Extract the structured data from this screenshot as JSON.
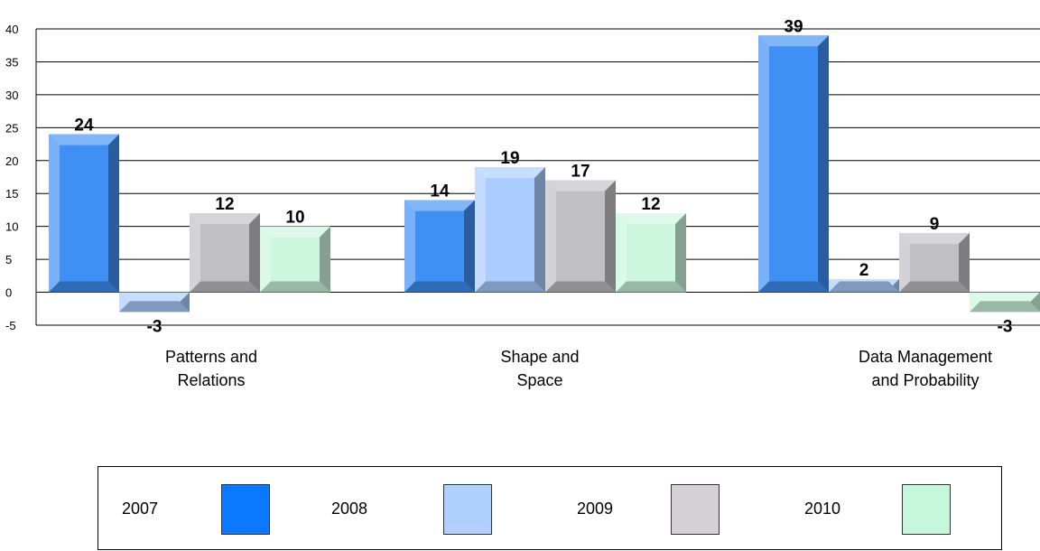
{
  "chart_data": {
    "type": "bar",
    "categories": [
      [
        "Patterns and",
        "Relations"
      ],
      [
        "Shape and",
        "Space"
      ],
      [
        "Data Management",
        "and Probability"
      ]
    ],
    "series": [
      {
        "name": "2007",
        "values": [
          24,
          14,
          39
        ],
        "color": "#3f8ff5"
      },
      {
        "name": "2008",
        "values": [
          -3,
          19,
          2
        ],
        "color": "#aaccff"
      },
      {
        "name": "2009",
        "values": [
          12,
          17,
          9
        ],
        "color": "#c0bfc4"
      },
      {
        "name": "2010",
        "values": [
          10,
          12,
          -3
        ],
        "color": "#ccf6dd"
      }
    ],
    "ylim": [
      -5,
      40
    ],
    "yticks": [
      40,
      35,
      30,
      25,
      20,
      15,
      10,
      5,
      0,
      -5
    ],
    "grid": true,
    "legend_position": "bottom"
  },
  "legend": {
    "items": [
      {
        "label": "2007",
        "color": "#0a78ff"
      },
      {
        "label": "2008",
        "color": "#b0d0ff"
      },
      {
        "label": "2009",
        "color": "#d4d0d6"
      },
      {
        "label": "2010",
        "color": "#c6f7dc"
      }
    ]
  }
}
